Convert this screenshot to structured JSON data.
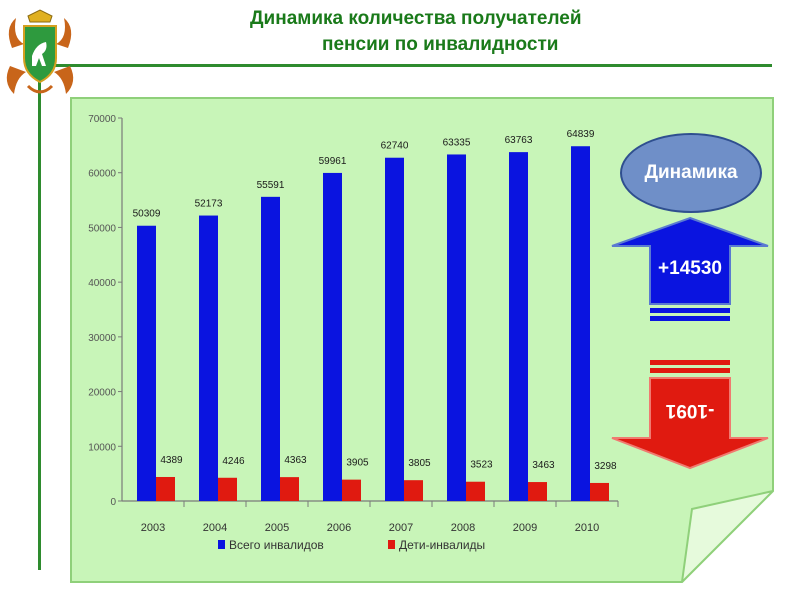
{
  "header": {
    "title_line1": "Динамика количества получателей",
    "title_line2": "пенсии по инвалидности"
  },
  "colors": {
    "title_green": "#1a7a1a",
    "panel_fill": "#c8f5b8",
    "series_total": "#0a14e0",
    "series_children": "#e01a10"
  },
  "side_panel": {
    "oval_label": "Динамика",
    "increase_label": "+14530",
    "decrease_label": "-1091"
  },
  "chart_data": {
    "type": "bar",
    "categories": [
      "2003",
      "2004",
      "2005",
      "2006",
      "2007",
      "2008",
      "2009",
      "2010"
    ],
    "series": [
      {
        "name": "Всего инвалидов",
        "values": [
          50309,
          52173,
          55591,
          59961,
          62740,
          63335,
          63763,
          64839
        ],
        "labels": [
          "50309",
          "52173",
          "55591",
          "59961",
          "62740",
          "63335",
          "63763",
          "64839"
        ]
      },
      {
        "name": "Дети-инвалиды",
        "values": [
          4389,
          4246,
          4363,
          3905,
          3805,
          3523,
          3463,
          3298
        ],
        "labels": [
          "4389",
          "4246",
          "4363",
          "3905",
          "3805",
          "3523",
          "3463",
          "3298"
        ]
      }
    ],
    "ylim": [
      0,
      70000
    ],
    "yticks": [
      "0",
      "10000",
      "20000",
      "30000",
      "40000",
      "50000",
      "60000",
      "70000"
    ],
    "legend": "bottom",
    "title": "",
    "xlabel": "",
    "ylabel": ""
  }
}
